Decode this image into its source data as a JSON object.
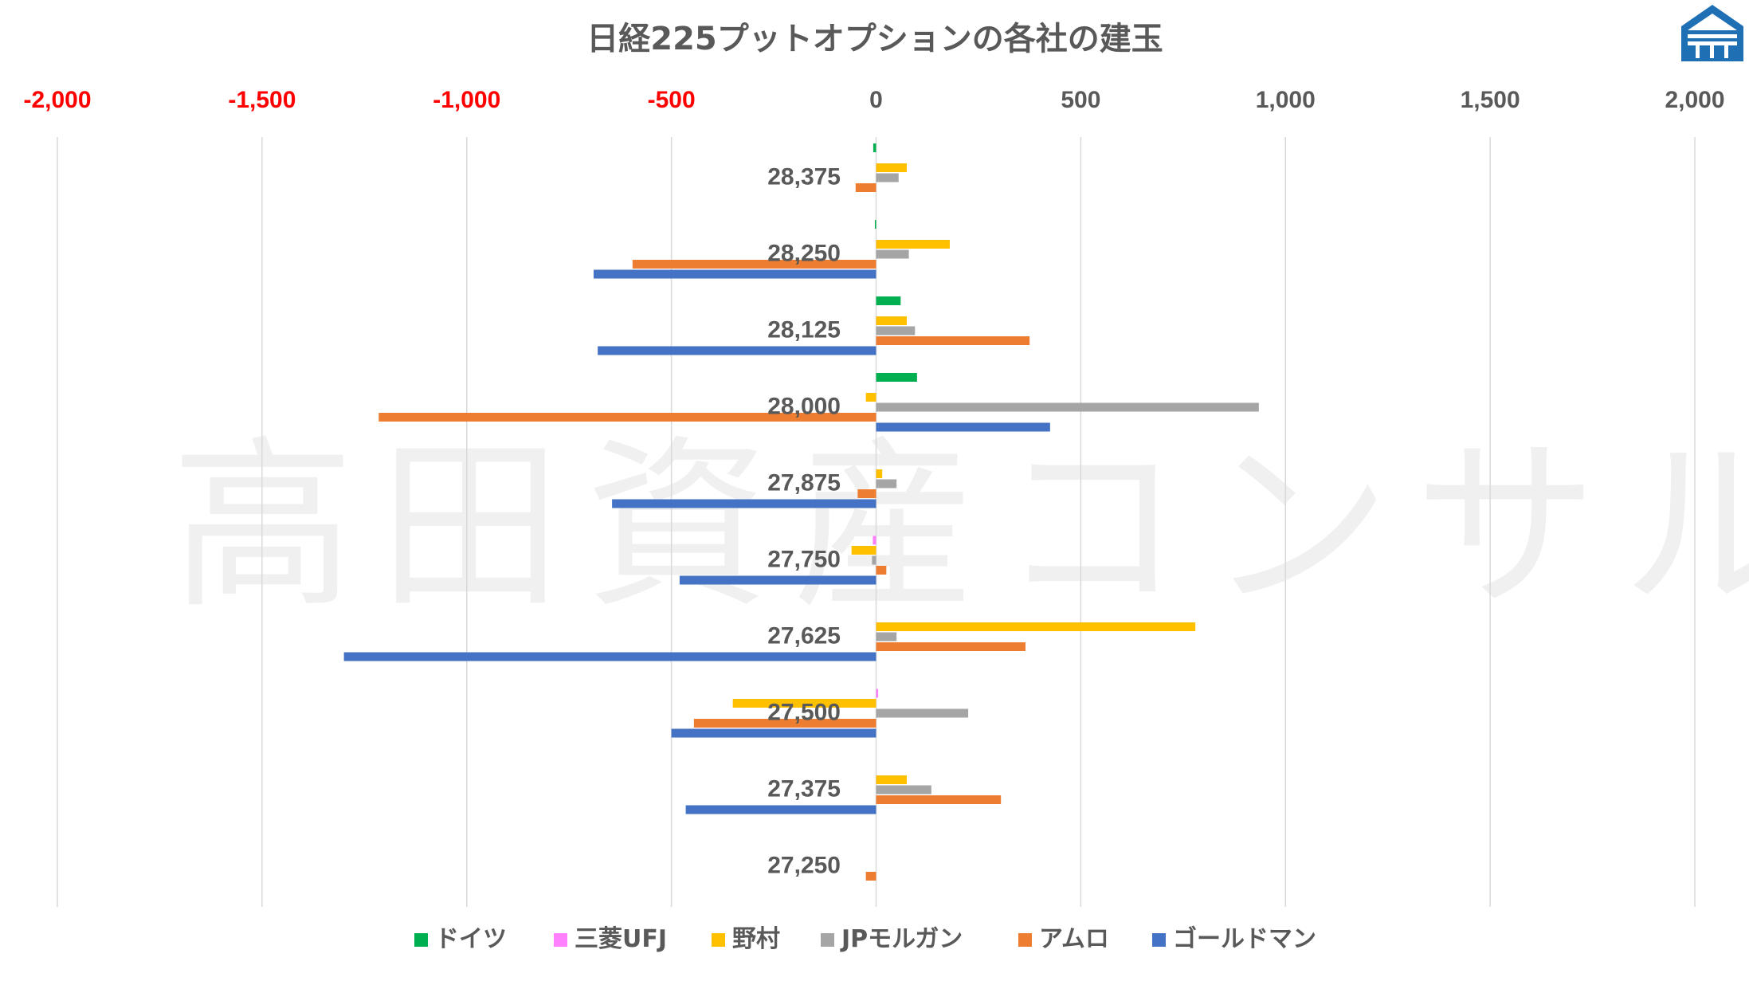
{
  "chart_data": {
    "type": "bar",
    "orientation": "horizontal",
    "title": "日経225プットオプションの各社の建玉",
    "watermark": "高田資産コンサル",
    "xlim": [
      -2000,
      2000
    ],
    "x_ticks": [
      -2000,
      -1500,
      -1000,
      -500,
      0,
      500,
      1000,
      1500,
      2000
    ],
    "x_tick_labels": [
      "-2,000",
      "-1,500",
      "-1,000",
      "-500",
      "0",
      "500",
      "1,000",
      "1,500",
      "2,000"
    ],
    "negative_tick_color": "#ff0000",
    "positive_tick_color": "#595959",
    "gridlines": true,
    "legend_position": "bottom",
    "categories": [
      "28,375",
      "28,250",
      "28,125",
      "28,000",
      "27,875",
      "27,750",
      "27,625",
      "27,500",
      "27,375",
      "27,250"
    ],
    "series": [
      {
        "name": "ドイツ",
        "color": "#00b050",
        "values": [
          -7,
          -3,
          60,
          100,
          0,
          0,
          0,
          0,
          0,
          0
        ]
      },
      {
        "name": "三菱UFJ",
        "color": "#ff80ff",
        "values": [
          0,
          0,
          0,
          0,
          0,
          -8,
          0,
          5,
          0,
          0
        ]
      },
      {
        "name": "野村",
        "color": "#ffc000",
        "values": [
          75,
          180,
          75,
          -25,
          15,
          -60,
          780,
          -350,
          75,
          0
        ]
      },
      {
        "name": "JPモルガン",
        "color": "#a5a5a5",
        "values": [
          55,
          80,
          95,
          935,
          50,
          -10,
          50,
          225,
          135,
          0
        ]
      },
      {
        "name": "アムロ",
        "color": "#ed7d31",
        "values": [
          -50,
          -595,
          375,
          -1215,
          -45,
          25,
          365,
          -445,
          305,
          -25
        ]
      },
      {
        "name": "ゴールドマン",
        "color": "#4472c4",
        "values": [
          0,
          -690,
          -680,
          425,
          -645,
          -480,
          -1300,
          -500,
          -465,
          0
        ]
      }
    ]
  }
}
